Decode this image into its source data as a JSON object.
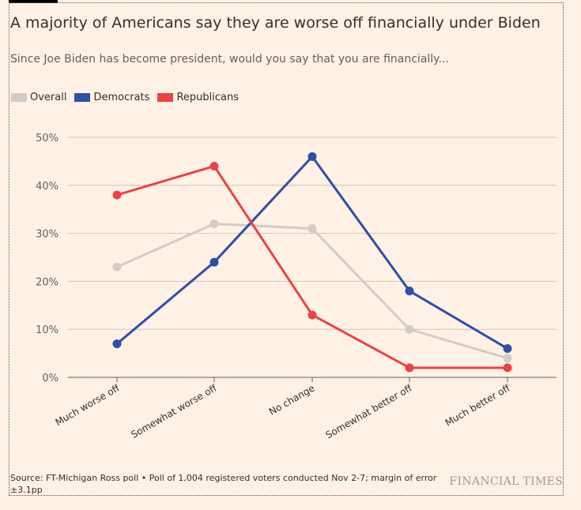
{
  "title": "A majority of Americans say they are worse off financially under Biden",
  "subtitle": "Since Joe Biden has become president, would you say that you are financially...",
  "source": "Source: FT-Michigan Ross poll • Poll of 1,004 registered voters conducted Nov 2-7; margin of error ±3.1pp",
  "brand": "FINANCIAL TIMES",
  "chart_data": {
    "type": "line",
    "categories": [
      "Much worse off",
      "Somewhat worse off",
      "No change",
      "Somewhat better off",
      "Much better off"
    ],
    "series": [
      {
        "name": "Overall",
        "color": "#d3ccc6",
        "values": [
          23,
          32,
          31,
          10,
          4
        ]
      },
      {
        "name": "Democrats",
        "color": "#2e4fa8",
        "values": [
          7,
          24,
          46,
          18,
          6
        ]
      },
      {
        "name": "Republicans",
        "color": "#e84444",
        "values": [
          38,
          44,
          13,
          2,
          2
        ]
      }
    ],
    "yticks": [
      0,
      10,
      20,
      30,
      40,
      50
    ],
    "ytick_labels": [
      "0%",
      "10%",
      "20%",
      "30%",
      "40%",
      "50%"
    ],
    "ylim": [
      0,
      50
    ],
    "grid": true,
    "legend": "top-left"
  }
}
